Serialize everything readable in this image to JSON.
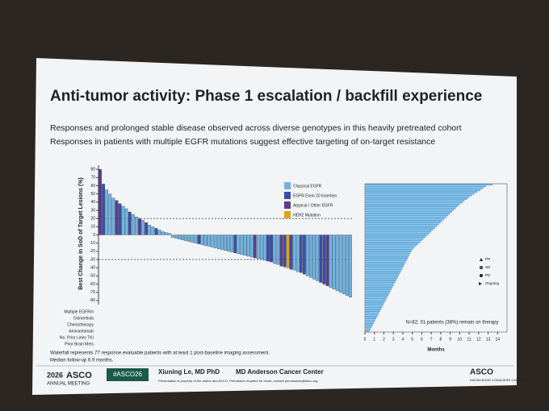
{
  "slide": {
    "title": "Anti-tumor activity: Phase 1 escalation / backfill experience",
    "bullets": [
      "Responses and prolonged stable disease observed across diverse genotypes in this heavily pretreated cohort",
      "Responses in patients with multiple EGFR mutations suggest effective targeting of on-target resistance"
    ],
    "row_labels": [
      "Multiple EGFRm",
      "Osimertinib",
      "Chemotherapy",
      "Amivantamab",
      "No. Prior Lines TKI",
      "Prior Brain Mets"
    ],
    "footnotes": [
      "Waterfall represents 77 response evaluable patients with at least 1 post-baseline imaging assessment.",
      "Median follow-up 6.9 months."
    ],
    "footer": {
      "meeting_year": "2026",
      "meeting": "ASCO",
      "meeting_sub": "ANNUAL MEETING",
      "hashtag": "#ASCO26",
      "presenter": "Xiuning Le, MD PhD",
      "institution": "MD Anderson Cancer Center",
      "notice": "Presentation is property of the author and ASCO. Permission required for reuse; contact permissions@asco.org",
      "logo": "ASCO",
      "logo_sub": "KNOWLEDGE CONQUERS CANCER"
    }
  },
  "chart_data": [
    {
      "type": "waterfall",
      "y_label": "Best Change in SoD of Target Lesions (%)",
      "groups": [
        {
          "name": "Classical EGFR",
          "color": "#6cb4e4"
        },
        {
          "name": "EGFR Exon 20 Insertion",
          "color": "#3a4fa8"
        },
        {
          "name": "Atypical / Other EGFR",
          "color": "#5a3f8f"
        },
        {
          "name": "HER2 Mutation",
          "color": "#e0a020"
        }
      ],
      "values": [
        80,
        62,
        55,
        50,
        45,
        42,
        38,
        35,
        32,
        28,
        25,
        22,
        20,
        18,
        15,
        12,
        10,
        8,
        6,
        4,
        3,
        2,
        -3,
        -4,
        -5,
        -6,
        -7,
        -8,
        -9,
        -10,
        -11,
        -12,
        -13,
        -14,
        -15,
        -16,
        -17,
        -18,
        -19,
        -20,
        -21,
        -22,
        -23,
        -24,
        -25,
        -26,
        -27,
        -28,
        -29,
        -30,
        -31,
        -32,
        -33,
        -35,
        -36,
        -38,
        -39,
        -40,
        -42,
        -43,
        -45,
        -46,
        -48,
        -50,
        -52,
        -54,
        -56,
        -58,
        -60,
        -62,
        -64,
        -66,
        -68,
        -70,
        -72,
        -74,
        -76
      ],
      "group": [
        2,
        1,
        0,
        0,
        0,
        2,
        1,
        0,
        0,
        1,
        0,
        0,
        2,
        0,
        1,
        0,
        0,
        1,
        0,
        0,
        0,
        0,
        0,
        0,
        0,
        0,
        0,
        0,
        0,
        0,
        1,
        0,
        0,
        0,
        0,
        0,
        0,
        0,
        0,
        0,
        0,
        1,
        0,
        0,
        0,
        0,
        0,
        2,
        0,
        0,
        0,
        1,
        1,
        0,
        0,
        2,
        1,
        3,
        1,
        0,
        0,
        1,
        1,
        0,
        0,
        0,
        0,
        1,
        1,
        2,
        0,
        0,
        0,
        0,
        0,
        0,
        0
      ],
      "ylim": [
        -85,
        85
      ],
      "yticks": [
        80,
        70,
        60,
        50,
        40,
        30,
        20,
        10,
        0,
        -10,
        -20,
        -30,
        -40,
        -50,
        -60,
        -70,
        -80
      ],
      "reflines": [
        20,
        -30
      ]
    },
    {
      "type": "swimmer",
      "x_label": "Months",
      "annotation": "N=82; 31 patients (38%) remain on therapy",
      "color": "#5aa8dc",
      "marker_legend": [
        "PR",
        "SD",
        "PD",
        "Ongoing"
      ],
      "values": [
        13.5,
        12.8,
        12.5,
        12.2,
        11.9,
        11.6,
        11.3,
        11.0,
        10.8,
        10.5,
        10.3,
        10.0,
        9.8,
        9.6,
        9.4,
        9.2,
        9.0,
        8.8,
        8.6,
        8.4,
        8.2,
        8.0,
        7.8,
        7.6,
        7.4,
        7.2,
        7.0,
        6.8,
        6.6,
        6.4,
        6.2,
        6.0,
        5.8,
        5.6,
        5.4,
        5.2,
        5.0,
        4.9,
        4.8,
        4.7,
        4.6,
        4.5,
        4.4,
        4.3,
        4.2,
        4.1,
        4.0,
        3.9,
        3.8,
        3.7,
        3.6,
        3.5,
        3.4,
        3.3,
        3.2,
        3.1,
        3.0,
        2.9,
        2.8,
        2.7,
        2.6,
        2.5,
        2.4,
        2.3,
        2.2,
        2.1,
        2.0,
        1.9,
        1.8,
        1.7,
        1.6,
        1.5,
        1.4,
        1.3,
        1.2,
        1.1,
        1.0,
        0.9,
        0.8,
        0.7,
        0.6,
        0.5
      ],
      "xlim": [
        0,
        15
      ],
      "xticks": [
        0,
        1,
        2,
        3,
        4,
        5,
        6,
        7,
        8,
        9,
        10,
        11,
        12,
        13,
        14
      ]
    }
  ]
}
